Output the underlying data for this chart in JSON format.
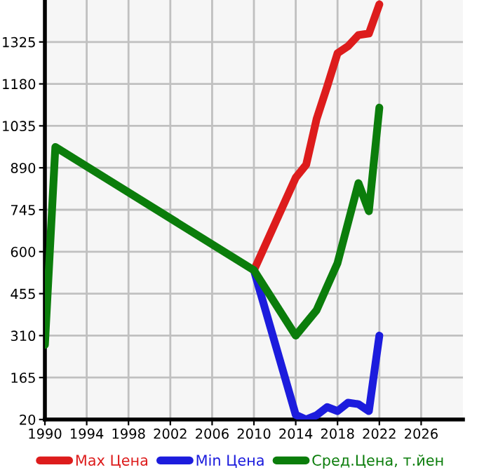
{
  "chart_data": {
    "type": "line",
    "series": [
      {
        "name": "Max Цена",
        "color": "#dd1c1c",
        "x": [
          2010,
          2014,
          2015,
          2016,
          2017,
          2018,
          2019,
          2020,
          2021,
          2022
        ],
        "values": [
          536,
          856,
          901,
          1059,
          1170,
          1286,
          1310,
          1349,
          1354,
          1455
        ]
      },
      {
        "name": "Min Цена",
        "color": "#1c1cdd",
        "x": [
          2010,
          2014,
          2015,
          2016,
          2017,
          2018,
          2019,
          2020,
          2021,
          2022
        ],
        "values": [
          536,
          36,
          20,
          35,
          63,
          49,
          78,
          73,
          49,
          310
        ]
      },
      {
        "name": "Сред.Цена, т.йен",
        "color": "#0b7d0b",
        "x": [
          1990,
          1991,
          2010,
          2014,
          2016,
          2018,
          2020,
          2021,
          2022
        ],
        "values": [
          278,
          962,
          536,
          310,
          398,
          561,
          837,
          740,
          1098
        ]
      }
    ],
    "xlim": [
      1990,
      2030
    ],
    "xticks": [
      1990,
      1994,
      1998,
      2002,
      2006,
      2010,
      2014,
      2018,
      2022,
      2026
    ],
    "ylim": [
      20,
      1470
    ],
    "yticks": [
      20,
      165,
      310,
      455,
      600,
      745,
      890,
      1035,
      1180,
      1325
    ],
    "grid": true,
    "legend": "bottom",
    "marker": "none",
    "line_style": "solid"
  }
}
